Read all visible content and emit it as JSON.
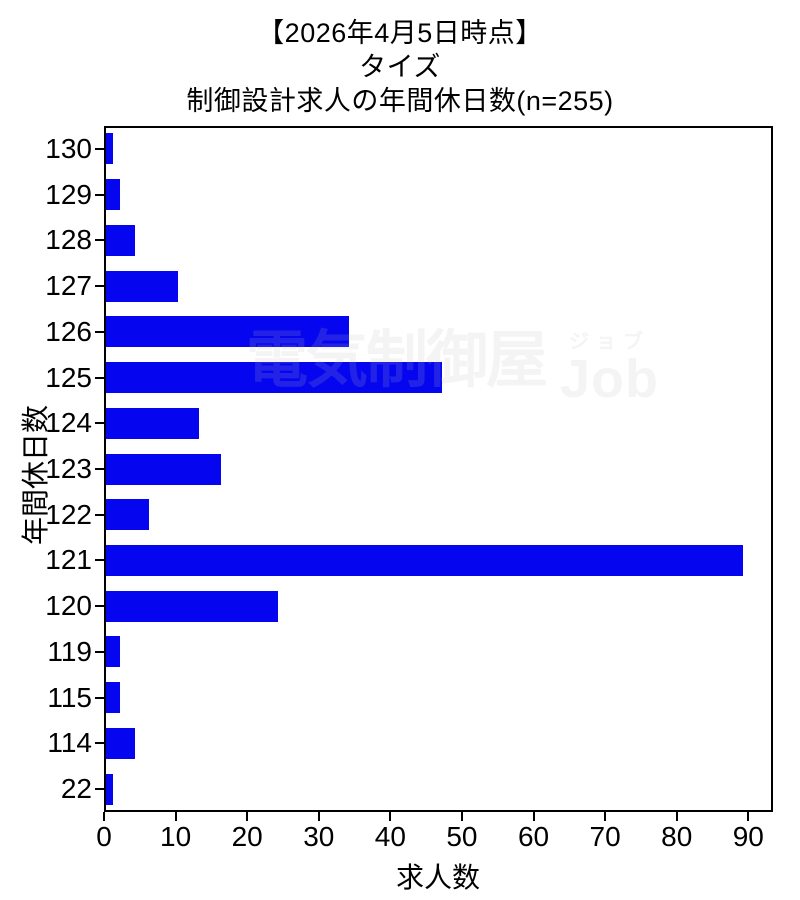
{
  "title": {
    "line1": "【2026年4月5日時点】",
    "line2": "タイズ",
    "line3": "制御設計求人の年間休日数(n=255)"
  },
  "watermark": {
    "kanji": "電気制御屋",
    "kana": "ジョブ",
    "latin": "Job"
  },
  "chart_data": {
    "type": "bar",
    "orientation": "horizontal",
    "title": "【2026年4月5日時点】 タイズ 制御設計求人の年間休日数(n=255)",
    "ylabel": "年間休日数",
    "xlabel": "求人数",
    "categories": [
      "130",
      "129",
      "128",
      "127",
      "126",
      "125",
      "124",
      "123",
      "122",
      "121",
      "120",
      "119",
      "115",
      "114",
      "22"
    ],
    "values": [
      1,
      2,
      4,
      10,
      34,
      47,
      13,
      16,
      6,
      89,
      24,
      2,
      2,
      4,
      1
    ],
    "n_total": 255,
    "xlim": [
      0,
      93.45
    ],
    "xticks": [
      0,
      10,
      20,
      30,
      40,
      50,
      60,
      70,
      80,
      90
    ],
    "bar_color": "#0505f0",
    "grid": false,
    "legend": null
  }
}
